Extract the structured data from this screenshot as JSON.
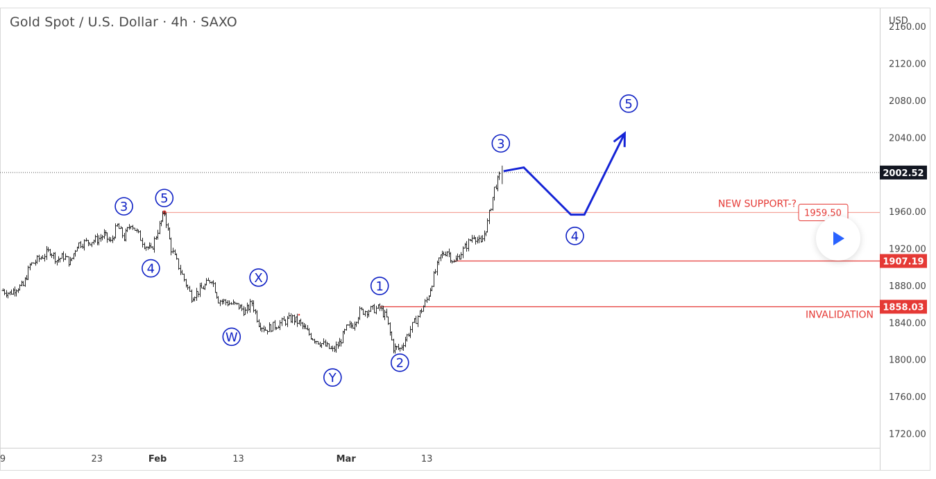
{
  "header": {
    "title": "Gold Spot / U.S. Dollar · 4h · SAXO"
  },
  "colors": {
    "wave": "#0d1fc4",
    "support": "#e53935",
    "candle": "#222222",
    "axis": "#333333"
  },
  "chart_data": {
    "type": "candlestick",
    "title": "Gold Spot / U.S. Dollar · 4h · SAXO",
    "currency_label": "USD",
    "timeframe": "4h",
    "ylim": [
      1705,
      2180
    ],
    "y_ticks": [
      "2160.00",
      "2120.00",
      "2080.00",
      "2040.00",
      "1960.00",
      "1920.00",
      "1880.00",
      "1840.00",
      "1800.00",
      "1760.00",
      "1720.00"
    ],
    "x_ticks": [
      {
        "label": "9",
        "date": "2023-01-09"
      },
      {
        "label": "23",
        "date": "2023-01-23"
      },
      {
        "label": "Feb",
        "date": "2023-02-01",
        "bold": true
      },
      {
        "label": "13",
        "date": "2023-02-13"
      },
      {
        "label": "Mar",
        "date": "2023-03-01",
        "bold": true
      },
      {
        "label": "13",
        "date": "2023-03-13"
      }
    ],
    "price_path": [
      [
        "2023-01-09",
        1875
      ],
      [
        "2023-01-10",
        1872
      ],
      [
        "2023-01-11",
        1878
      ],
      [
        "2023-01-12",
        1880
      ],
      [
        "2023-01-13",
        1902
      ],
      [
        "2023-01-16",
        1918
      ],
      [
        "2023-01-17",
        1908
      ],
      [
        "2023-01-18",
        1912
      ],
      [
        "2023-01-19",
        1905
      ],
      [
        "2023-01-20",
        1925
      ],
      [
        "2023-01-23",
        1930
      ],
      [
        "2023-01-24",
        1935
      ],
      [
        "2023-01-25",
        1927
      ],
      [
        "2023-01-26",
        1945
      ],
      [
        "2023-01-27",
        1932
      ],
      [
        "2023-01-28",
        1948
      ],
      [
        "2023-01-30",
        1925
      ],
      [
        "2023-01-31",
        1918
      ],
      [
        "2023-02-01",
        1940
      ],
      [
        "2023-02-02",
        1959
      ],
      [
        "2023-02-03",
        1920
      ],
      [
        "2023-02-06",
        1868
      ],
      [
        "2023-02-07",
        1874
      ],
      [
        "2023-02-08",
        1880
      ],
      [
        "2023-02-09",
        1888
      ],
      [
        "2023-02-10",
        1865
      ],
      [
        "2023-02-13",
        1858
      ],
      [
        "2023-02-14",
        1852
      ],
      [
        "2023-02-15",
        1862
      ],
      [
        "2023-02-16",
        1840
      ],
      [
        "2023-02-17",
        1833
      ],
      [
        "2023-02-20",
        1842
      ],
      [
        "2023-02-21",
        1845
      ],
      [
        "2023-02-22",
        1840
      ],
      [
        "2023-02-23",
        1832
      ],
      [
        "2023-02-24",
        1824
      ],
      [
        "2023-02-27",
        1810
      ],
      [
        "2023-02-28",
        1818
      ],
      [
        "2023-03-01",
        1834
      ],
      [
        "2023-03-02",
        1838
      ],
      [
        "2023-03-03",
        1852
      ],
      [
        "2023-03-06",
        1856
      ],
      [
        "2023-03-07",
        1845
      ],
      [
        "2023-03-08",
        1813
      ],
      [
        "2023-03-09",
        1812
      ],
      [
        "2023-03-10",
        1826
      ],
      [
        "2023-03-13",
        1865
      ],
      [
        "2023-03-14",
        1890
      ],
      [
        "2023-03-15",
        1912
      ],
      [
        "2023-03-16",
        1918
      ],
      [
        "2023-03-17",
        1905
      ],
      [
        "2023-03-20",
        1935
      ],
      [
        "2023-03-21",
        1925
      ],
      [
        "2023-03-22",
        1948
      ],
      [
        "2023-03-23",
        1985
      ],
      [
        "2023-03-24",
        2002
      ]
    ],
    "last_price": {
      "value": "2002.52",
      "label": "2002.52"
    },
    "levels": [
      {
        "name": "new-support",
        "price": 1959.5,
        "price_label": "1959.50",
        "label": "NEW SUPPORT-?",
        "start": "2023-02-02"
      },
      {
        "name": "level-1907",
        "price": 1907.19,
        "price_label": "1907.19",
        "start": "2023-03-17"
      },
      {
        "name": "invalidation",
        "price": 1858.03,
        "price_label": "1858.03",
        "label": "INVALIDATION",
        "start": "2023-03-06"
      }
    ],
    "projection": [
      [
        "2023-03-24",
        2004
      ],
      [
        "2023-03-27",
        2008
      ],
      [
        "2023-04-03",
        1957
      ],
      [
        "2023-04-05",
        1957
      ],
      [
        "2023-04-11",
        2045
      ]
    ],
    "wave_labels": [
      {
        "label": "3",
        "date": "2023-01-27",
        "price": 1966
      },
      {
        "label": "5",
        "date": "2023-02-02",
        "price": 1975
      },
      {
        "label": "4",
        "date": "2023-01-31",
        "price": 1899
      },
      {
        "label": "W",
        "date": "2023-02-12",
        "price": 1825
      },
      {
        "label": "X",
        "date": "2023-02-16",
        "price": 1889
      },
      {
        "label": "Y",
        "date": "2023-02-27",
        "price": 1781
      },
      {
        "label": "1",
        "date": "2023-03-06",
        "price": 1880
      },
      {
        "label": "2",
        "date": "2023-03-09",
        "price": 1797
      },
      {
        "label": "3",
        "date": "2023-03-24",
        "price": 2034
      },
      {
        "label": "4",
        "date": "2023-04-04",
        "price": 1934
      },
      {
        "label": "5",
        "date": "2023-04-12",
        "price": 2077
      }
    ]
  }
}
